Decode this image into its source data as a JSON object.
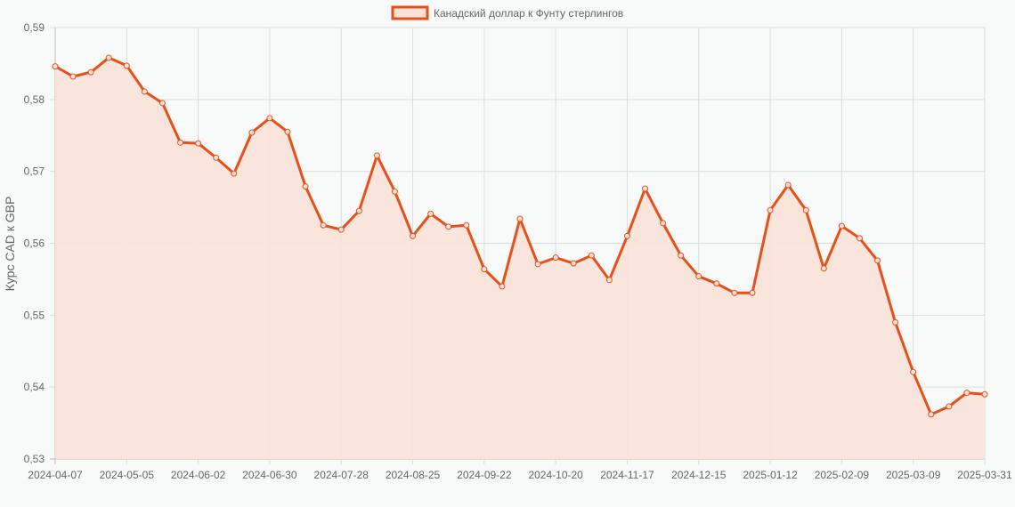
{
  "chart_data": {
    "type": "line",
    "title": "",
    "legend": {
      "label": "Канадский доллар к Фунту стерлингов",
      "position": "top"
    },
    "xlabel": "",
    "ylabel": "Курс CAD к GBP",
    "ylim": [
      0.53,
      0.59
    ],
    "y_ticks": [
      "0,59",
      "0,58",
      "0,57",
      "0,56",
      "0,55",
      "0,54",
      "0,53"
    ],
    "x_tick_labels": [
      "2024-04-07",
      "2024-05-05",
      "2024-06-02",
      "2024-06-30",
      "2024-07-28",
      "2024-08-25",
      "2024-09-22",
      "2024-10-20",
      "2024-11-17",
      "2024-12-15",
      "2025-01-12",
      "2025-02-09",
      "2025-03-09",
      "2025-03-31"
    ],
    "grid": true,
    "fill": true,
    "colors": {
      "line": "#e8501a",
      "fill": "#f9e2d8",
      "grid": "#dddddd",
      "background": "#f8f9f9"
    },
    "x": [
      "2024-04-07",
      "2024-04-14",
      "2024-04-21",
      "2024-04-28",
      "2024-05-05",
      "2024-05-12",
      "2024-05-19",
      "2024-05-26",
      "2024-06-02",
      "2024-06-09",
      "2024-06-16",
      "2024-06-23",
      "2024-06-30",
      "2024-07-07",
      "2024-07-14",
      "2024-07-21",
      "2024-07-28",
      "2024-08-04",
      "2024-08-11",
      "2024-08-18",
      "2024-08-25",
      "2024-09-01",
      "2024-09-08",
      "2024-09-15",
      "2024-09-22",
      "2024-09-29",
      "2024-10-06",
      "2024-10-13",
      "2024-10-20",
      "2024-10-27",
      "2024-11-03",
      "2024-11-10",
      "2024-11-17",
      "2024-11-24",
      "2024-12-01",
      "2024-12-08",
      "2024-12-15",
      "2024-12-22",
      "2024-12-29",
      "2025-01-05",
      "2025-01-12",
      "2025-01-19",
      "2025-01-26",
      "2025-02-02",
      "2025-02-09",
      "2025-02-16",
      "2025-02-23",
      "2025-03-02",
      "2025-03-09",
      "2025-03-16",
      "2025-03-23",
      "2025-03-30",
      "2025-03-31"
    ],
    "series": [
      {
        "name": "Канадский доллар к Фунту стерлингов",
        "values": [
          0.5846,
          0.5832,
          0.5838,
          0.5858,
          0.5847,
          0.5811,
          0.5795,
          0.574,
          0.5739,
          0.5719,
          0.5697,
          0.5754,
          0.5774,
          0.5755,
          0.5679,
          0.5625,
          0.5619,
          0.5645,
          0.5722,
          0.5672,
          0.561,
          0.5641,
          0.5623,
          0.5625,
          0.5564,
          0.554,
          0.5634,
          0.5571,
          0.558,
          0.5572,
          0.5583,
          0.5549,
          0.561,
          0.5676,
          0.5628,
          0.5583,
          0.5554,
          0.5544,
          0.5531,
          0.5531,
          0.5646,
          0.5681,
          0.5646,
          0.5565,
          0.5624,
          0.5607,
          0.5576,
          0.549,
          0.5421,
          0.5362,
          0.5373,
          0.5392,
          0.539
        ]
      }
    ]
  }
}
